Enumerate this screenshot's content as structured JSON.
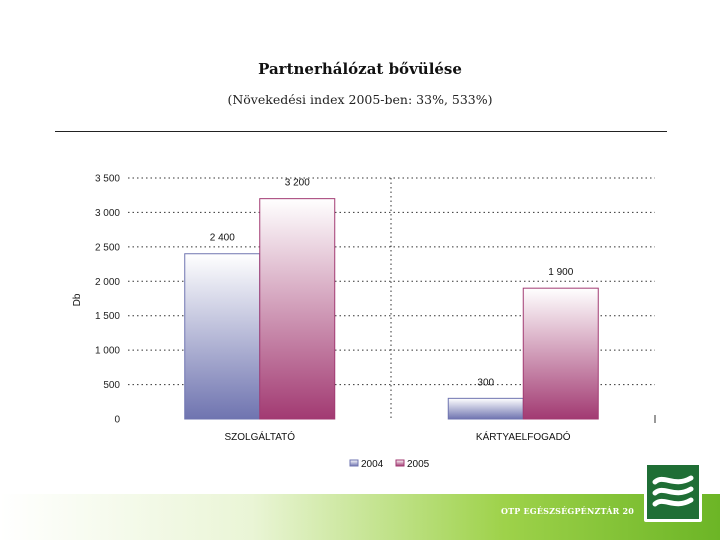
{
  "slide": {
    "title": "Partnerhálózat bővülése",
    "subtitle": "(Növekedési index 2005-ben: 33%, 533%)"
  },
  "footer": {
    "text": "OTP EGÉSZSÉGPÉNZTÁR 20"
  },
  "colors": {
    "series_2004": "#6f74b0",
    "series_2005": "#a23a72",
    "footer_green": "#6cb526",
    "logo_green": "#1f6e35"
  },
  "logo": {
    "icon": "wave-logo-icon"
  },
  "chart_data": {
    "type": "bar",
    "categories": [
      "SZOLGÁLTATÓ",
      "KÁRTYAELFOGADÓ"
    ],
    "series": [
      {
        "name": "2004",
        "values": [
          2400,
          300
        ],
        "labels": [
          "2 400",
          "300"
        ]
      },
      {
        "name": "2005",
        "values": [
          3200,
          1900
        ],
        "labels": [
          "3 200",
          "1 900"
        ]
      }
    ],
    "ylabel": "Db",
    "ylim": [
      0,
      3500
    ],
    "yticks": [
      0,
      500,
      1000,
      1500,
      2000,
      2500,
      3000,
      3500
    ],
    "ytick_labels": [
      "0",
      "500",
      "1 000",
      "1 500",
      "2 000",
      "2 500",
      "3 000",
      "3 500"
    ],
    "grid": true,
    "legend": "bottom"
  }
}
